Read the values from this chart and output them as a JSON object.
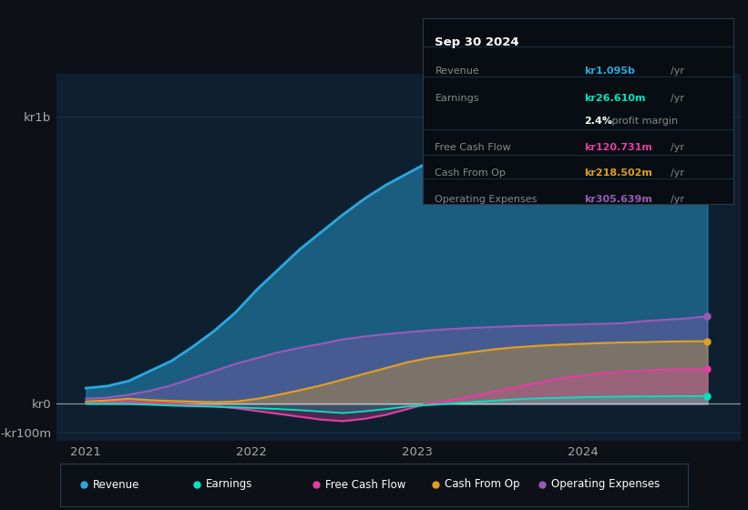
{
  "bg_color": "#0d1117",
  "plot_bg_color": "#0e2030",
  "title": "Sep 30 2024",
  "info_box": {
    "date": "Sep 30 2024",
    "revenue_label": "Revenue",
    "revenue_value": "kr1.095b",
    "revenue_color": "#29a8e0",
    "earnings_label": "Earnings",
    "earnings_value": "kr26.610m",
    "earnings_color": "#00e5c0",
    "margin_text": "2.4%",
    "margin_label": " profit margin",
    "fcf_label": "Free Cash Flow",
    "fcf_value": "kr120.731m",
    "fcf_color": "#e040a0",
    "cashop_label": "Cash From Op",
    "cashop_value": "kr218.502m",
    "cashop_color": "#e0a020",
    "opex_label": "Operating Expenses",
    "opex_value": "kr305.639m",
    "opex_color": "#9b59b6"
  },
  "series": {
    "revenue": {
      "color": "#29a8e0",
      "label": "Revenue",
      "values": [
        55,
        62,
        80,
        115,
        150,
        200,
        255,
        320,
        400,
        470,
        540,
        600,
        660,
        715,
        763,
        803,
        843,
        872,
        902,
        932,
        958,
        980,
        1000,
        1018,
        1032,
        1042,
        1057,
        1072,
        1082,
        1095
      ]
    },
    "earnings": {
      "color": "#00e5c0",
      "label": "Earnings",
      "values": [
        1,
        0.5,
        0.2,
        -3,
        -6,
        -8,
        -10,
        -12,
        -15,
        -18,
        -22,
        -27,
        -32,
        -26,
        -18,
        -9,
        -4,
        1,
        6,
        11,
        16,
        19,
        21,
        23,
        24.5,
        25.5,
        26,
        26.5,
        26.7,
        26.61
      ]
    },
    "fcf": {
      "color": "#e040a0",
      "label": "Free Cash Flow",
      "values": [
        3,
        5,
        7,
        3,
        0,
        -4,
        -8,
        -15,
        -25,
        -35,
        -45,
        -55,
        -60,
        -52,
        -38,
        -18,
        2,
        12,
        27,
        42,
        57,
        72,
        87,
        97,
        107,
        112,
        116,
        119,
        121,
        120.731
      ]
    },
    "cashop": {
      "color": "#e0a020",
      "label": "Cash From Op",
      "values": [
        8,
        12,
        18,
        13,
        10,
        8,
        6,
        8,
        18,
        32,
        48,
        65,
        85,
        105,
        125,
        145,
        160,
        170,
        180,
        190,
        197,
        202,
        206,
        209,
        212,
        214,
        215,
        217,
        218,
        218.502
      ]
    },
    "opex": {
      "color": "#9b59b6",
      "label": "Operating Expenses",
      "values": [
        18,
        22,
        32,
        46,
        65,
        90,
        115,
        140,
        160,
        180,
        196,
        210,
        225,
        235,
        243,
        250,
        256,
        261,
        265,
        268,
        271,
        273,
        275,
        277,
        279,
        281,
        288,
        293,
        298,
        305.639
      ]
    }
  },
  "ylim": [
    -130,
    1150
  ],
  "grid_color": "#1e3040",
  "legend_bg": "#0d1117",
  "legend_border": "#2a3a4a"
}
